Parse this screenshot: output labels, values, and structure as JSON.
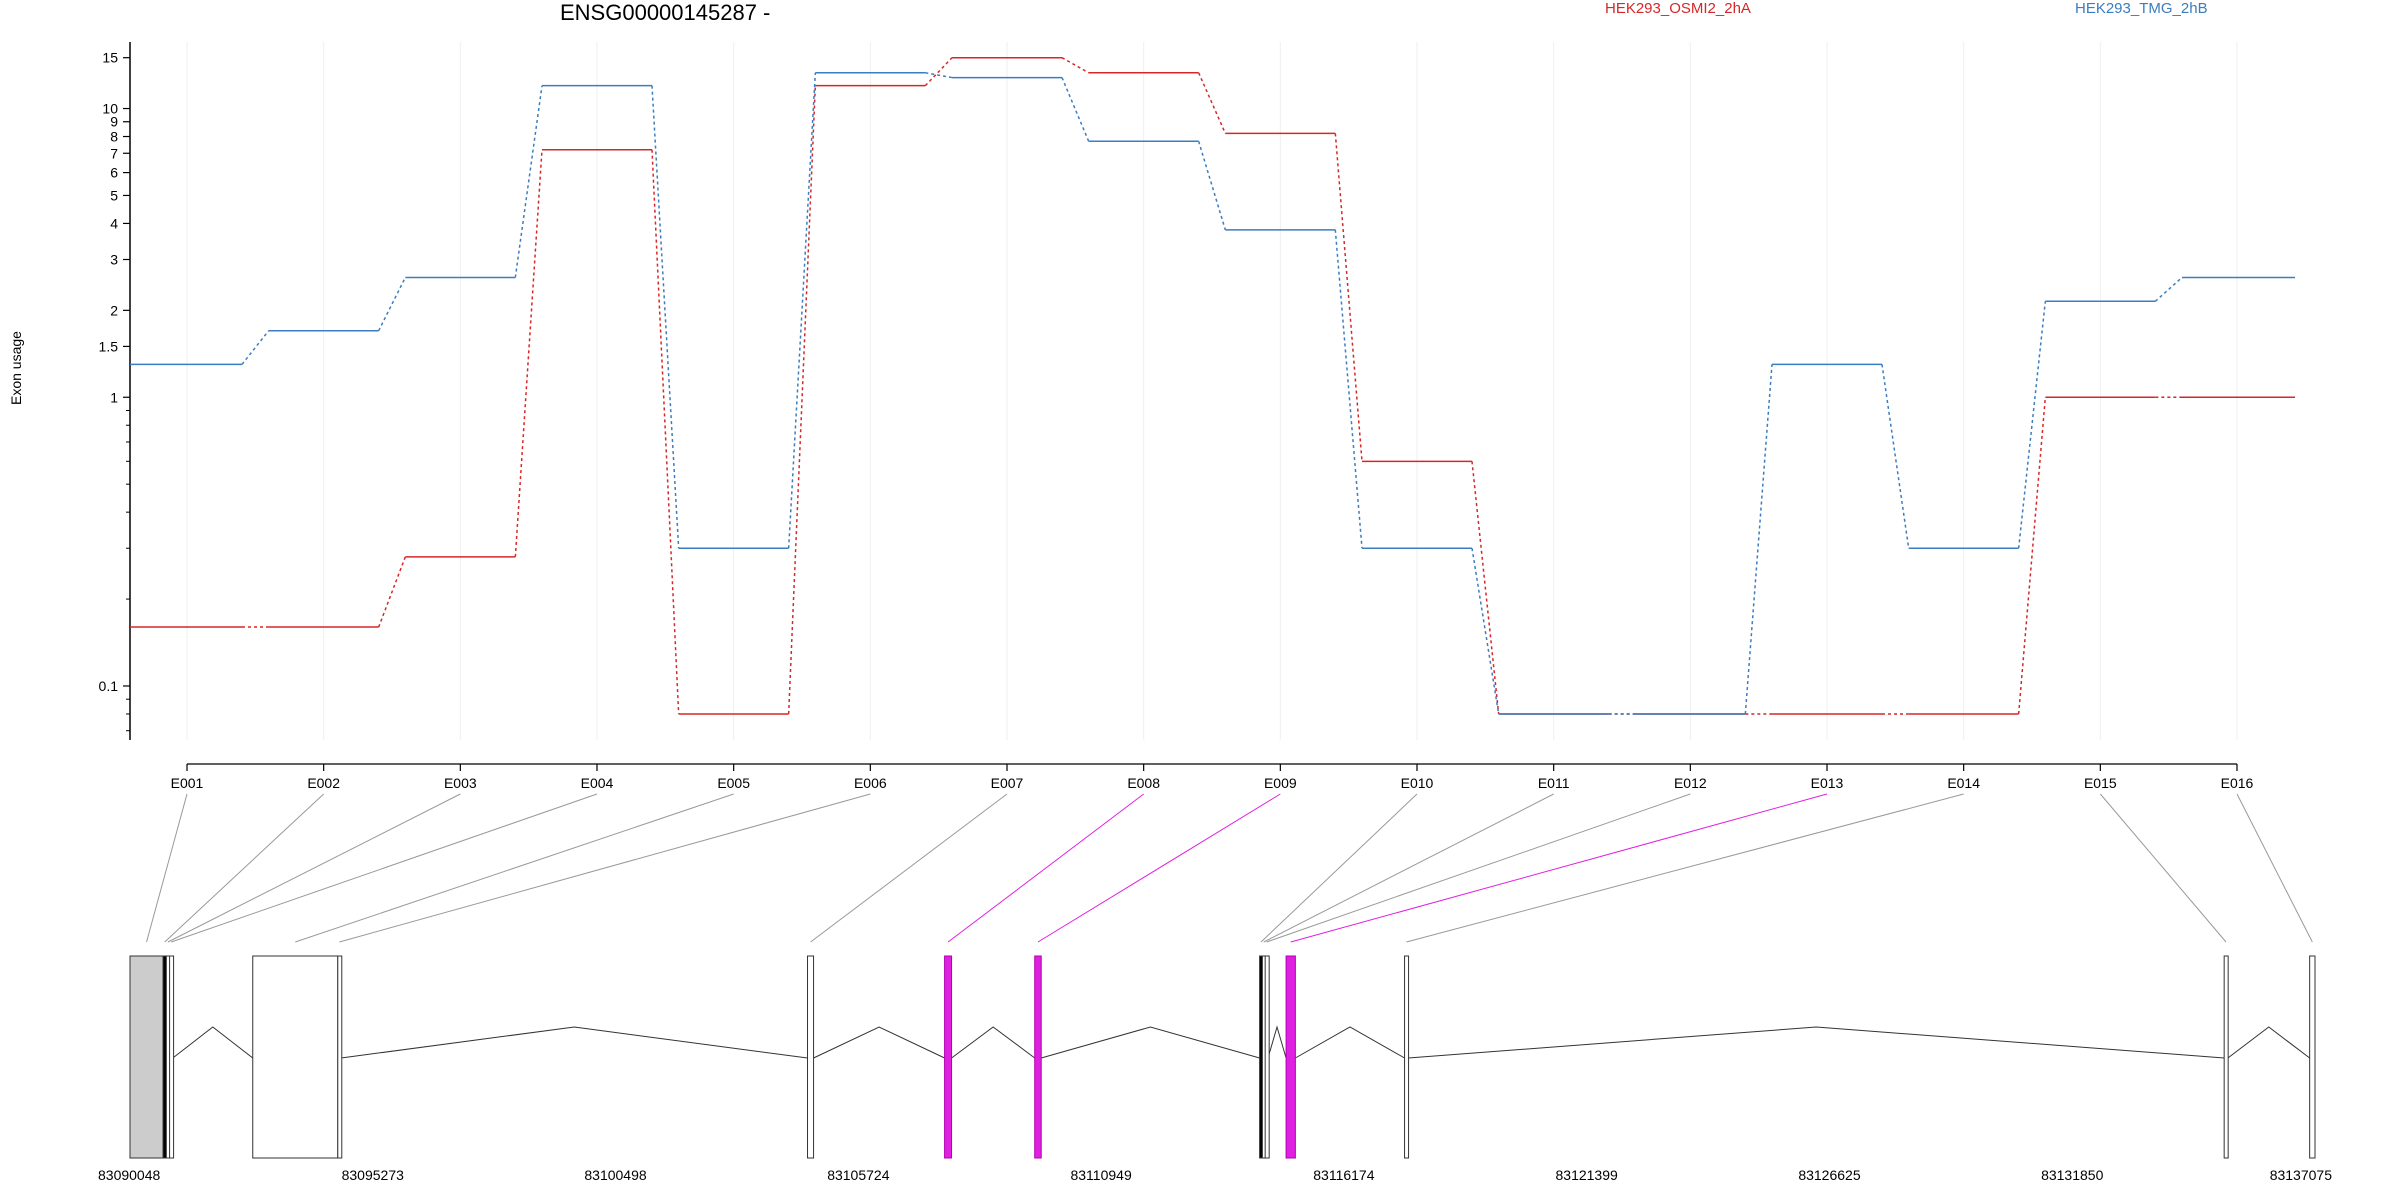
{
  "chart_data": {
    "type": "line",
    "title": "ENSG00000145287 -",
    "ylabel": "Exon usage",
    "yscale": "log",
    "ylim": [
      0.065,
      17
    ],
    "ytick_values": [
      0.1,
      1,
      1.5,
      2,
      3,
      4,
      5,
      6,
      7,
      8,
      9,
      10,
      15
    ],
    "ytick_labels": [
      "0.1",
      "1",
      "1.5",
      "2",
      "3",
      "4",
      "5",
      "6",
      "7",
      "8",
      "9",
      "10",
      "15"
    ],
    "categories": [
      "E001",
      "E002",
      "E003",
      "E004",
      "E005",
      "E006",
      "E007",
      "E008",
      "E009",
      "E010",
      "E011",
      "E012",
      "E013",
      "E014",
      "E015",
      "E016"
    ],
    "series": [
      {
        "name": "HEK293_OSMI2_2hA",
        "color": "#d62728",
        "values": [
          0.16,
          0.16,
          0.28,
          7.2,
          0.08,
          12,
          15,
          13.3,
          8.2,
          0.6,
          0.08,
          0.08,
          0.08,
          0.08,
          1.0,
          1.0
        ]
      },
      {
        "name": "HEK293_TMG_2hB",
        "color": "#3a7dc0",
        "values": [
          1.3,
          1.7,
          2.6,
          12,
          0.3,
          13.3,
          12.8,
          7.7,
          3.8,
          0.3,
          0.08,
          0.08,
          1.3,
          0.3,
          2.15,
          2.6
        ]
      }
    ],
    "gene_model": {
      "coord_start": 83090048,
      "coord_end": 83137075,
      "coord_ticks": [
        83090048,
        83095273,
        83100498,
        83105724,
        83110949,
        83116174,
        83121399,
        83126625,
        83131850,
        83137075
      ],
      "coord_labels": [
        "83090048",
        "83095273",
        "83100498",
        "83105724",
        "83110949",
        "83116174",
        "83121399",
        "83126625",
        "83131850",
        "83137075"
      ],
      "highlight_color": "#e020e0",
      "exons": [
        {
          "id": "E001",
          "start": 83090048,
          "end": 83090760,
          "highlight": false,
          "fill": "#cccccc"
        },
        {
          "id": "E002",
          "start": 83090760,
          "end": 83090830,
          "highlight": false,
          "fill": "#000000"
        },
        {
          "id": "E003",
          "start": 83090830,
          "end": 83090900,
          "highlight": false,
          "fill": "#ffffff"
        },
        {
          "id": "E004",
          "start": 83090900,
          "end": 83090970,
          "highlight": false,
          "fill": "#ffffff"
        },
        {
          "id": "E005",
          "start": 83092690,
          "end": 83094520,
          "highlight": false,
          "fill": "#ffffff"
        },
        {
          "id": "E006",
          "start": 83094520,
          "end": 83094590,
          "highlight": false,
          "fill": "#ffffff"
        },
        {
          "id": "E007",
          "start": 83104630,
          "end": 83104760,
          "highlight": false,
          "fill": "#ffffff"
        },
        {
          "id": "E008",
          "start": 83107580,
          "end": 83107730,
          "highlight": true,
          "fill": "#e020e0"
        },
        {
          "id": "E009",
          "start": 83109520,
          "end": 83109660,
          "highlight": true,
          "fill": "#e020e0"
        },
        {
          "id": "E010",
          "start": 83114360,
          "end": 83114420,
          "highlight": false,
          "fill": "#000000"
        },
        {
          "id": "E011",
          "start": 83114420,
          "end": 83114480,
          "highlight": false,
          "fill": "#ffffff"
        },
        {
          "id": "E012",
          "start": 83114480,
          "end": 83114540,
          "highlight": false,
          "fill": "#ffffff"
        },
        {
          "id": "E013",
          "start": 83114930,
          "end": 83115130,
          "highlight": true,
          "fill": "#e020e0"
        },
        {
          "id": "E014",
          "start": 83117480,
          "end": 83117560,
          "highlight": false,
          "fill": "#ffffff"
        },
        {
          "id": "E015",
          "start": 83135120,
          "end": 83135200,
          "highlight": false,
          "fill": "#ffffff"
        },
        {
          "id": "E016",
          "start": 83136960,
          "end": 83137075,
          "highlight": false,
          "fill": "#ffffff"
        }
      ],
      "introns": [
        [
          83090970,
          83092690
        ],
        [
          83094590,
          83104630
        ],
        [
          83104760,
          83107580
        ],
        [
          83107730,
          83109520
        ],
        [
          83109660,
          83114360
        ],
        [
          83114540,
          83114930
        ],
        [
          83115130,
          83117480
        ],
        [
          83117560,
          83135120
        ],
        [
          83135200,
          83136960
        ]
      ]
    }
  }
}
